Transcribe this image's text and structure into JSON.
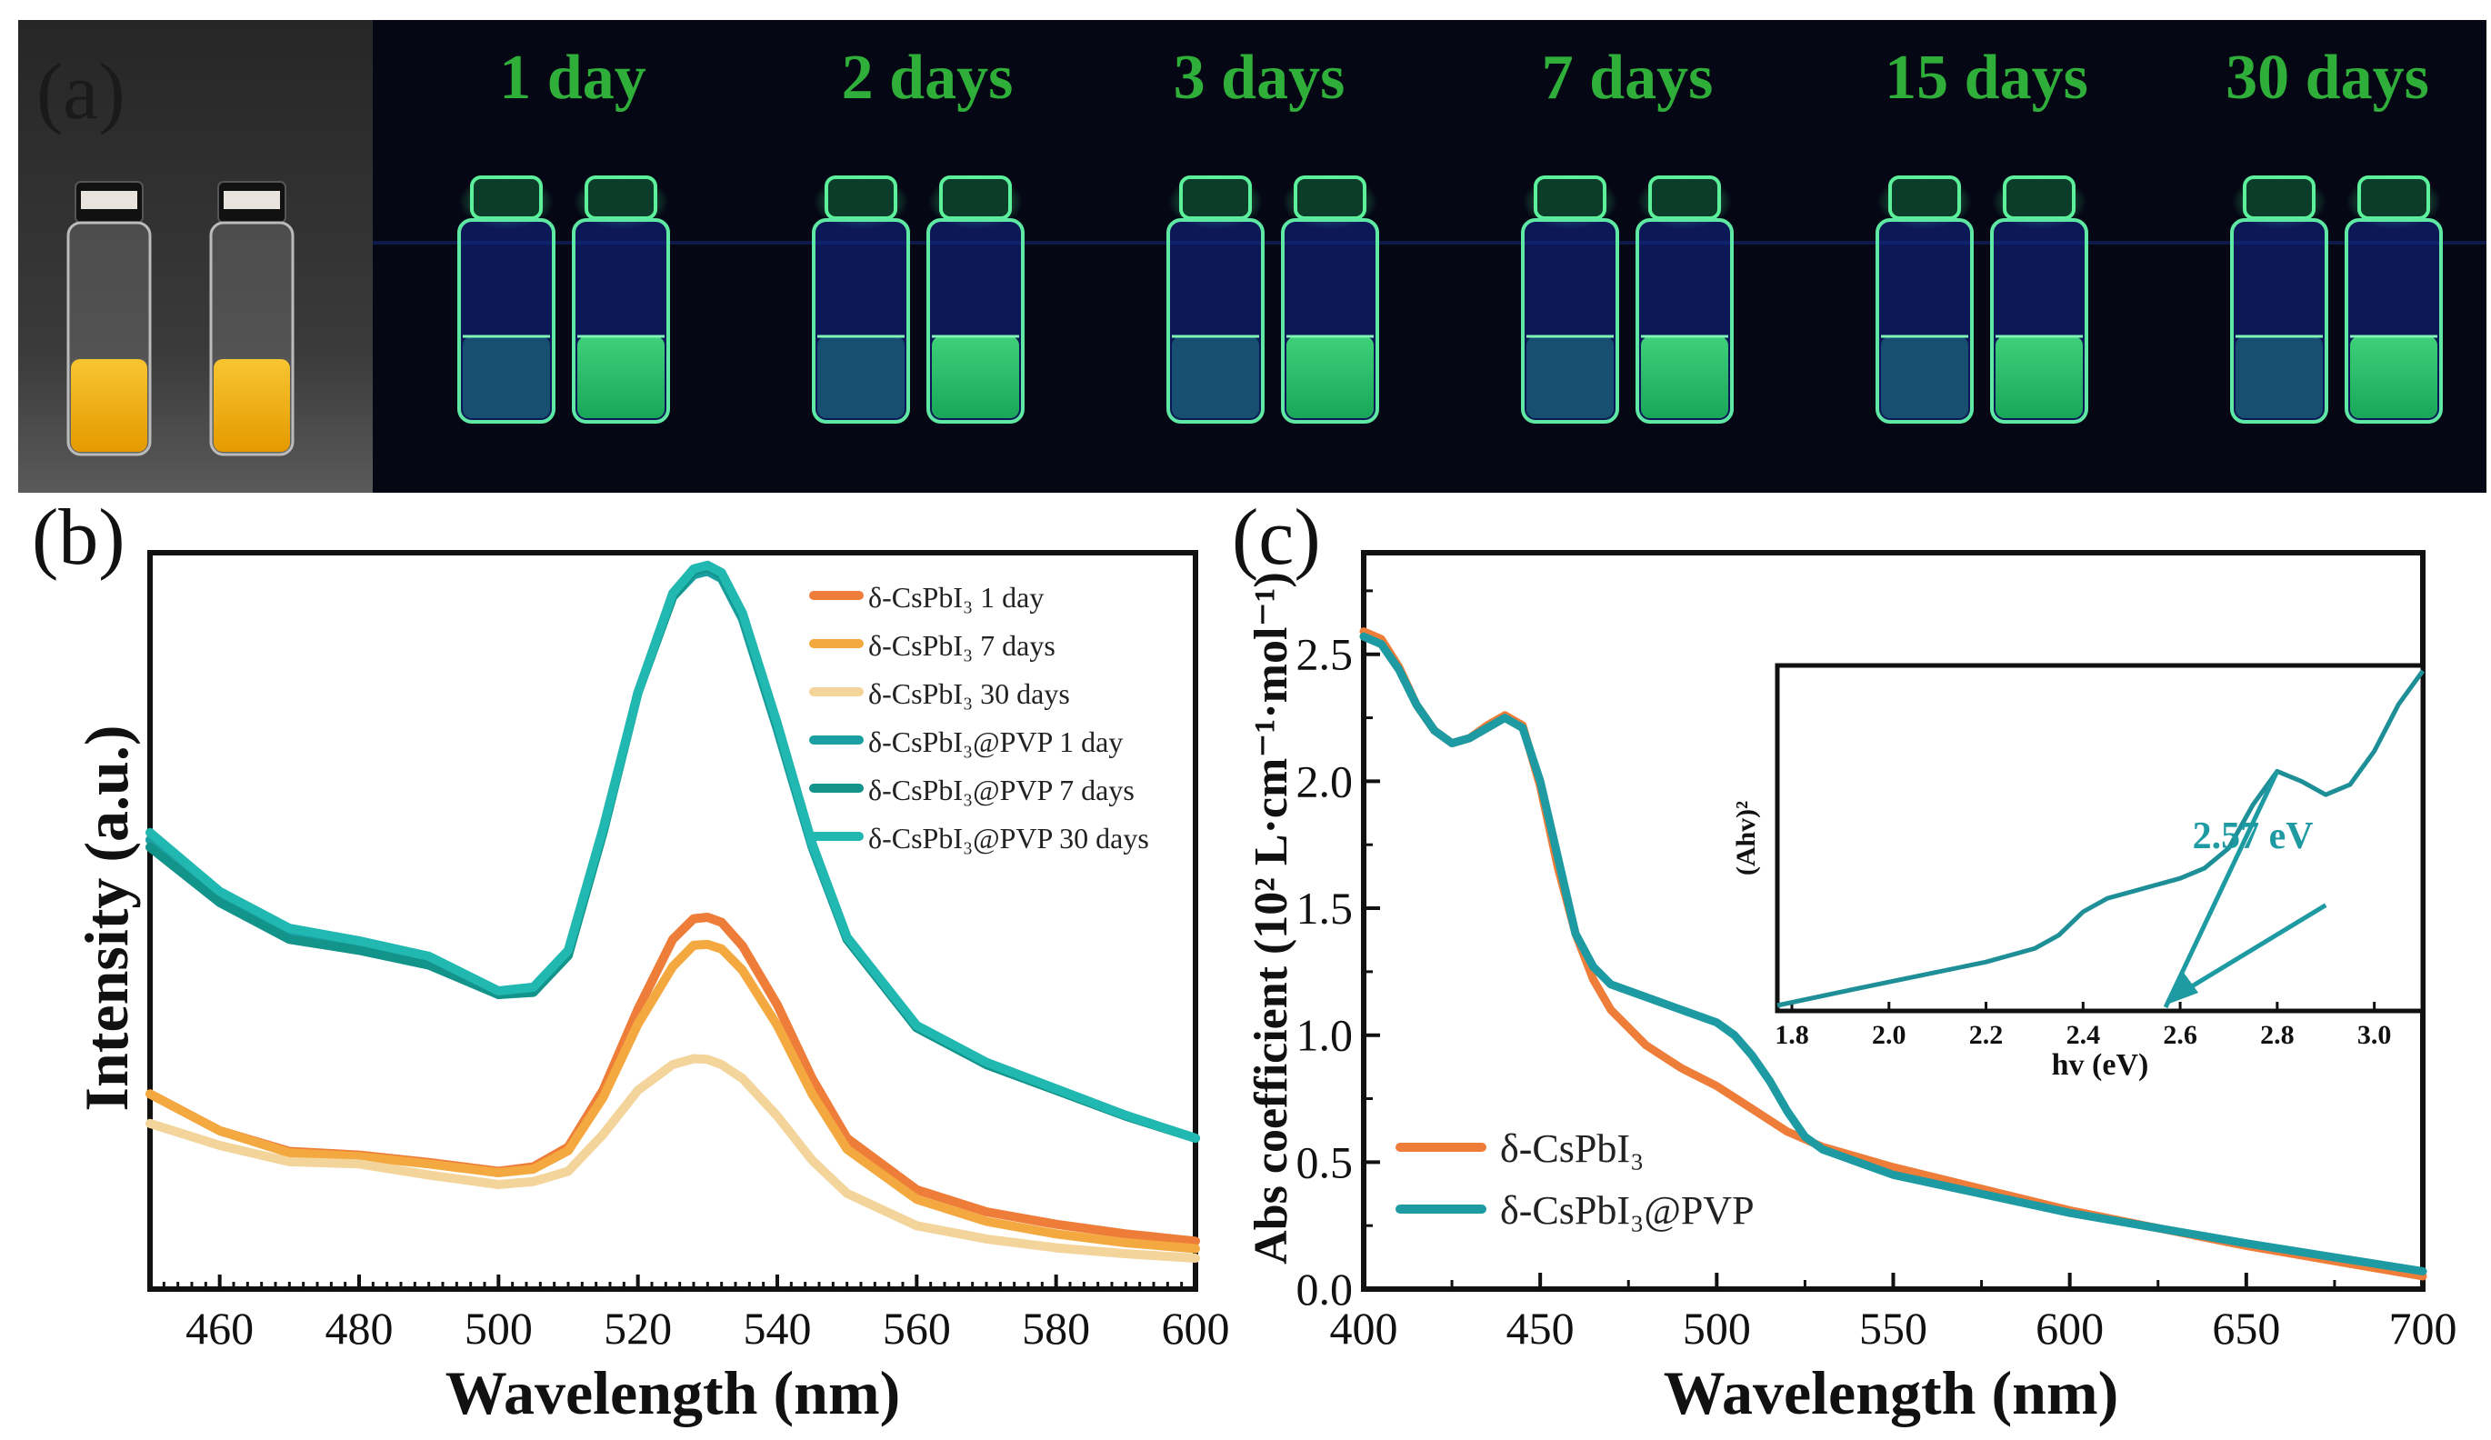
{
  "panel_labels": {
    "a": "(a)",
    "b": "(b)",
    "c": "(c)"
  },
  "panel_a": {
    "day_labels": [
      "1 day",
      "2 days",
      "3 days",
      "7 days",
      "15 days",
      "30 days"
    ],
    "label_color": "#2fae3a",
    "uv_background": "#050814",
    "vial_glow_color": "#43e08a",
    "solution_color_daylight": "#f2b100"
  },
  "chart_data": [
    {
      "id": "b",
      "type": "line",
      "title": "",
      "xlabel": "Wavelength (nm)",
      "ylabel": "Intensity (a.u.)",
      "xlim": [
        450,
        600
      ],
      "ylim": [
        0,
        100
      ],
      "xticks": [
        460,
        480,
        500,
        520,
        540,
        560,
        580,
        600
      ],
      "yticks_shown": false,
      "legend_position": "top-right",
      "series": [
        {
          "name": "δ-CsPbI₃ 1 day",
          "color": "#ee7d3a",
          "x": [
            450,
            460,
            470,
            480,
            490,
            500,
            505,
            510,
            515,
            520,
            525,
            528,
            530,
            532,
            535,
            540,
            545,
            550,
            560,
            570,
            580,
            590,
            600
          ],
          "y": [
            26.5,
            21.5,
            18.7,
            18.2,
            17.2,
            16.0,
            16.6,
            19.3,
            27,
            38,
            47.5,
            50.3,
            50.5,
            49.8,
            46.6,
            38.6,
            28.6,
            20.5,
            13.5,
            10.5,
            8.8,
            7.5,
            6.5
          ]
        },
        {
          "name": "δ-CsPbI₃ 7 days",
          "color": "#f3a93f",
          "x": [
            450,
            460,
            470,
            480,
            490,
            500,
            505,
            510,
            515,
            520,
            525,
            528,
            530,
            532,
            535,
            540,
            545,
            550,
            560,
            570,
            580,
            590,
            600
          ],
          "y": [
            26.5,
            21.5,
            18.5,
            18.0,
            17.0,
            15.8,
            16.3,
            18.8,
            26,
            36,
            43.8,
            46.7,
            46.8,
            46.2,
            43.3,
            35.8,
            26.5,
            19.0,
            12.2,
            9.2,
            7.5,
            6.3,
            5.5
          ]
        },
        {
          "name": "δ-CsPbI₃ 30 days",
          "color": "#f3d49a",
          "x": [
            450,
            460,
            470,
            480,
            490,
            500,
            505,
            510,
            515,
            520,
            525,
            528,
            530,
            532,
            535,
            540,
            545,
            550,
            560,
            570,
            580,
            590,
            600
          ],
          "y": [
            22.5,
            19.5,
            17.3,
            17.0,
            15.5,
            14.2,
            14.6,
            16.0,
            21,
            27,
            30.5,
            31.3,
            31.2,
            30.5,
            28.6,
            23.5,
            17.5,
            13.0,
            8.6,
            6.8,
            5.6,
            4.8,
            4.2
          ]
        },
        {
          "name": "δ-CsPbI₃@PVP 1 day",
          "color": "#1c9fa2",
          "x": [
            450,
            460,
            470,
            480,
            490,
            500,
            505,
            510,
            515,
            520,
            525,
            528,
            530,
            532,
            535,
            540,
            545,
            550,
            560,
            570,
            580,
            590,
            600
          ],
          "y": [
            61,
            53,
            48,
            46.5,
            44.5,
            40,
            40.5,
            45.5,
            62,
            81,
            94,
            97,
            97.5,
            96.5,
            91,
            76,
            60,
            47.5,
            35.5,
            30.5,
            27,
            23.5,
            20.5
          ]
        },
        {
          "name": "δ-CsPbI₃@PVP 7 days",
          "color": "#12948a",
          "x": [
            450,
            460,
            470,
            480,
            490,
            500,
            505,
            510,
            515,
            520,
            525,
            528,
            530,
            532,
            535,
            540,
            545,
            550,
            560,
            570,
            580,
            590,
            600
          ],
          "y": [
            60,
            52.5,
            47.5,
            46,
            44,
            40,
            40.3,
            45.3,
            62,
            81,
            94,
            97.5,
            98,
            97,
            91.5,
            76.5,
            60.5,
            47.5,
            35.5,
            30.5,
            27,
            23.5,
            20.5
          ]
        },
        {
          "name": "δ-CsPbI₃@PVP 30 days",
          "color": "#20b8b0",
          "x": [
            450,
            460,
            470,
            480,
            490,
            500,
            505,
            510,
            515,
            520,
            525,
            528,
            530,
            532,
            535,
            540,
            545,
            550,
            560,
            570,
            580,
            590,
            600
          ],
          "y": [
            62,
            54,
            49,
            47.3,
            45.2,
            40.5,
            41,
            46,
            62.5,
            81,
            94.5,
            97.8,
            98.3,
            97.3,
            91.8,
            76.8,
            60.5,
            47.8,
            35.8,
            30.8,
            27.2,
            23.6,
            20.5
          ]
        }
      ]
    },
    {
      "id": "c",
      "type": "line",
      "title": "",
      "xlabel": "Wavelength (nm)",
      "ylabel": "Abs coefficient (10² L·cm⁻¹·mol⁻¹)",
      "xlim": [
        400,
        700
      ],
      "ylim": [
        0,
        2.9
      ],
      "xticks": [
        400,
        450,
        500,
        550,
        600,
        650,
        700
      ],
      "yticks": [
        0.0,
        0.5,
        1.0,
        1.5,
        2.0,
        2.5
      ],
      "xtick_labels": [
        "400",
        "450",
        "500",
        "550",
        "600",
        "650",
        "700"
      ],
      "ytick_labels": [
        "0.0",
        "0.5",
        "1.0",
        "1.5",
        "2.0",
        "2.5"
      ],
      "legend_position": "bottom-left",
      "series": [
        {
          "name": "δ-CsPbI₃",
          "color": "#ee7d3a",
          "x": [
            400,
            405,
            410,
            415,
            420,
            425,
            430,
            435,
            440,
            445,
            450,
            455,
            460,
            465,
            470,
            480,
            490,
            500,
            510,
            520,
            530,
            550,
            600,
            650,
            700
          ],
          "y": [
            2.59,
            2.56,
            2.45,
            2.3,
            2.2,
            2.15,
            2.17,
            2.22,
            2.26,
            2.22,
            1.98,
            1.66,
            1.4,
            1.22,
            1.1,
            0.96,
            0.87,
            0.8,
            0.71,
            0.62,
            0.56,
            0.48,
            0.31,
            0.17,
            0.05
          ]
        },
        {
          "name": "δ-CsPbI₃@PVP",
          "color": "#1e9aa2",
          "x": [
            400,
            405,
            410,
            415,
            420,
            425,
            430,
            435,
            440,
            445,
            450,
            455,
            460,
            465,
            470,
            480,
            490,
            500,
            505,
            510,
            515,
            520,
            525,
            530,
            550,
            600,
            650,
            700
          ],
          "y": [
            2.57,
            2.54,
            2.44,
            2.3,
            2.2,
            2.15,
            2.17,
            2.21,
            2.25,
            2.21,
            2.0,
            1.7,
            1.4,
            1.27,
            1.2,
            1.15,
            1.1,
            1.05,
            1.0,
            0.92,
            0.82,
            0.7,
            0.6,
            0.55,
            0.45,
            0.3,
            0.18,
            0.07
          ]
        }
      ],
      "inset": {
        "type": "line",
        "xlabel": "hv (eV)",
        "ylabel": "(Ahv)²",
        "xlim": [
          1.77,
          3.1
        ],
        "ylim": [
          0,
          1
        ],
        "xticks": [
          1.8,
          2.0,
          2.2,
          2.4,
          2.6,
          2.8,
          3.0
        ],
        "xtick_labels": [
          "1.8",
          "2.0",
          "2.2",
          "2.4",
          "2.6",
          "2.8",
          "3.0"
        ],
        "annotation": "2.57 eV",
        "annotation_x": 2.57,
        "annotation_color": "#1e9aa2",
        "series": [
          {
            "name": "δ-CsPbI₃@PVP",
            "color": "#1e8f97",
            "x": [
              1.77,
              1.9,
              2.0,
              2.1,
              2.2,
              2.3,
              2.35,
              2.4,
              2.45,
              2.5,
              2.55,
              2.6,
              2.65,
              2.7,
              2.75,
              2.8,
              2.85,
              2.9,
              2.95,
              3.0,
              3.05,
              3.1
            ],
            "y": [
              0.0,
              0.04,
              0.07,
              0.1,
              0.13,
              0.17,
              0.21,
              0.28,
              0.32,
              0.34,
              0.36,
              0.38,
              0.41,
              0.47,
              0.6,
              0.7,
              0.67,
              0.63,
              0.66,
              0.76,
              0.9,
              1.0
            ]
          }
        ]
      }
    }
  ]
}
